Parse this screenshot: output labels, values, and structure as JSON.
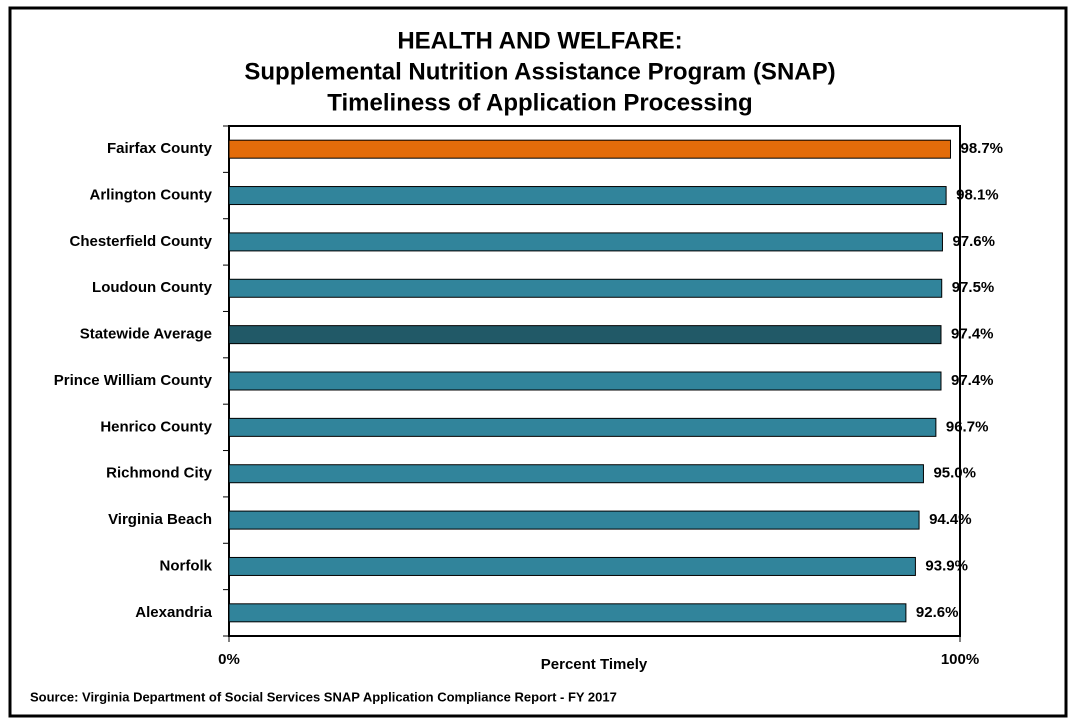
{
  "chart_data": {
    "type": "bar",
    "orientation": "horizontal",
    "title": [
      "HEALTH AND WELFARE:",
      "Supplemental Nutrition Assistance Program (SNAP)",
      "Timeliness of Application Processing"
    ],
    "categories": [
      "Fairfax County",
      "Arlington County",
      "Chesterfield County",
      "Loudoun County",
      "Statewide Average",
      "Prince William County",
      "Henrico County",
      "Richmond City",
      "Virginia Beach",
      "Norfolk",
      "Alexandria"
    ],
    "values": [
      98.7,
      98.1,
      97.6,
      97.5,
      97.4,
      97.4,
      96.7,
      95.0,
      94.4,
      93.9,
      92.6
    ],
    "value_labels": [
      "98.7%",
      "98.1%",
      "97.6%",
      "97.5%",
      "97.4%",
      "97.4%",
      "96.7%",
      "95.0%",
      "94.4%",
      "93.9%",
      "92.6%"
    ],
    "colors": [
      "#e36c0a",
      "#31849b",
      "#31849b",
      "#31849b",
      "#215967",
      "#31849b",
      "#31849b",
      "#31849b",
      "#31849b",
      "#31849b",
      "#31849b"
    ],
    "xlim": [
      0,
      100
    ],
    "xticks": [
      {
        "value": 0,
        "label": "0%"
      },
      {
        "value": 100,
        "label": "100%"
      }
    ],
    "xlabel": "Percent Timely",
    "source": "Source: Virginia Department of Social Services SNAP Application Compliance Report - FY 2017"
  }
}
